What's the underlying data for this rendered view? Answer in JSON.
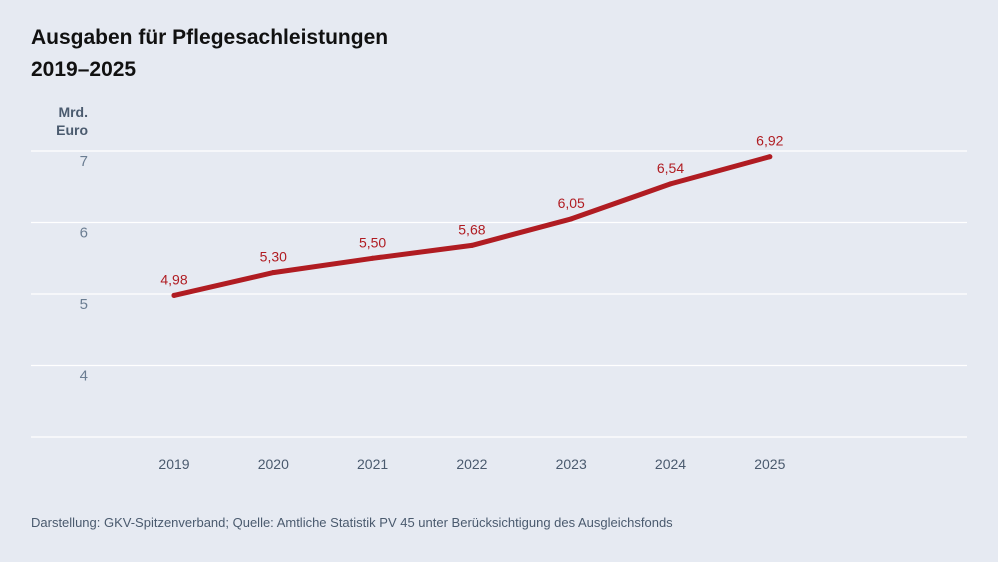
{
  "chart_data": {
    "type": "line",
    "title": "Ausgaben für Pflegesachleistungen",
    "subtitle": "2019–2025",
    "ylabel_lines": [
      "Mrd.",
      "Euro"
    ],
    "xlabel": "",
    "categories": [
      "2019",
      "2020",
      "2021",
      "2022",
      "2023",
      "2024",
      "2025"
    ],
    "values": [
      4.98,
      5.3,
      5.5,
      5.68,
      6.05,
      6.54,
      6.92
    ],
    "value_labels": [
      "4,98",
      "5,30",
      "5,50",
      "5,68",
      "6,05",
      "6,54",
      "6,92"
    ],
    "y_ticks": [
      4,
      5,
      6,
      7
    ],
    "ylim": [
      3,
      7
    ],
    "grid": true,
    "line_color": "#b01c22",
    "label_color": "#b01c22",
    "grid_color": "#ffffff",
    "tick_color": "#6b7d92"
  },
  "source": "Darstellung: GKV-Spitzenverband; Quelle: Amtliche Statistik PV 45 unter Berücksichtigung des Ausgleichsfonds"
}
